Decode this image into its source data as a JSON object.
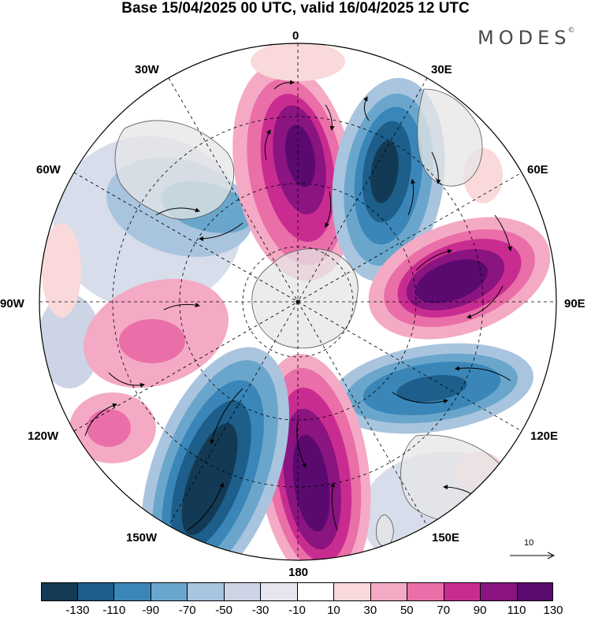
{
  "title": "Base 15/04/2025 00 UTC, valid 16/04/2025 12 UTC",
  "logo": "MODES",
  "logo_mark": "©",
  "longitudes": {
    "n": "0",
    "ne30": "30E",
    "ne60": "60E",
    "e": "90E",
    "se120": "120E",
    "se150": "150E",
    "s": "180",
    "sw150": "150W",
    "sw120": "120W",
    "w": "90W",
    "nw60": "60W",
    "nw30": "30W"
  },
  "reference_vector": "10",
  "colorbar": {
    "colors": [
      "#123a54",
      "#1d5e8a",
      "#3a86b8",
      "#6aa6cc",
      "#a9c4de",
      "#cdd4e6",
      "#e6e6f0",
      "#ffffff",
      "#f9d9d9",
      "#f4aac4",
      "#ea6ea8",
      "#c92c90",
      "#8a1480",
      "#5a0a6e"
    ],
    "ticks": [
      "-130",
      "-110",
      "-90",
      "-70",
      "-50",
      "-30",
      "-10",
      "10",
      "30",
      "50",
      "70",
      "90",
      "110",
      "130"
    ]
  },
  "icons": {
    "land": "continent-outline",
    "vector": "wind-arrow"
  }
}
